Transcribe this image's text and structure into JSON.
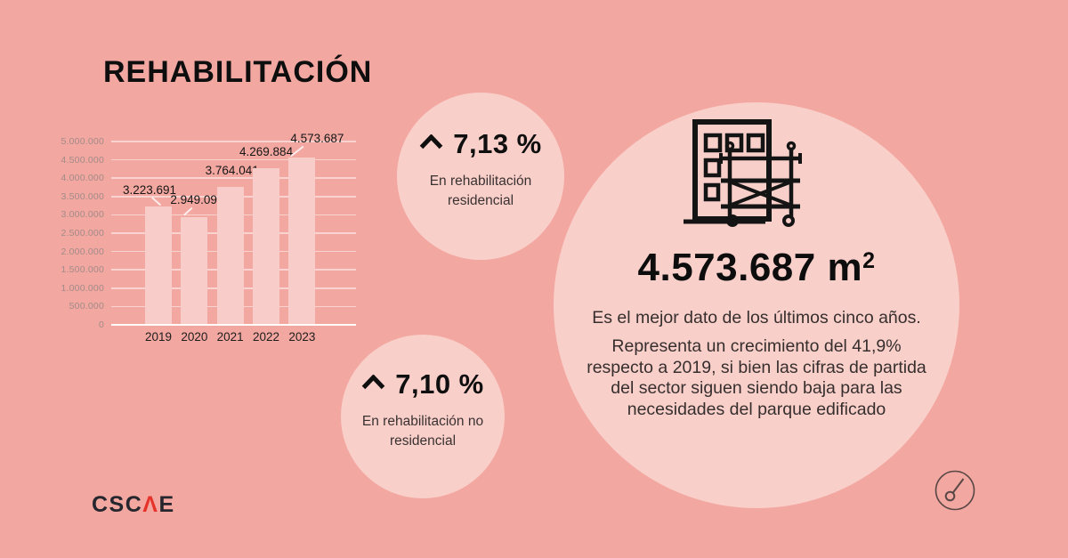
{
  "title": "REHABILITACIÓN",
  "chart_data": {
    "type": "bar",
    "categories": [
      "2019",
      "2020",
      "2021",
      "2022",
      "2023"
    ],
    "values": [
      3223691,
      2949090,
      3764041,
      4269884,
      4573687
    ],
    "value_labels": [
      "3.223.691",
      "2.949.090",
      "3.764.041",
      "4.269.884",
      "4.573.687"
    ],
    "ylim": [
      0,
      5000000
    ],
    "y_ticks": [
      0,
      500000,
      1000000,
      1500000,
      2000000,
      2500000,
      3000000,
      3500000,
      4000000,
      4500000,
      5000000
    ],
    "y_tick_labels": [
      "0",
      "500.000",
      "1.000.000",
      "1.500.000",
      "2.000.000",
      "2.500.000",
      "3.000.000",
      "3.500.000",
      "4.000.000",
      "4.500.000",
      "5.000.000"
    ],
    "xlabel": "",
    "ylabel": "",
    "grid": true,
    "legend": false,
    "bar_color": "#f8cdc9"
  },
  "stats": [
    {
      "icon": "chevron-up-icon",
      "value": "7,13 %",
      "label": "En rehabilitación residencial"
    },
    {
      "icon": "chevron-up-icon",
      "value": "7,10 %",
      "label": "En rehabilitación no residencial"
    }
  ],
  "highlight": {
    "icon": "building-scaffolding-icon",
    "value": "4.573.687 m",
    "exponent": "2",
    "line1": "Es el mejor dato de los últimos cinco años.",
    "line2": "Representa un crecimiento del 41,9% respecto a 2019, si bien las cifras de partida del sector siguen siendo baja para las necesidades del parque edificado"
  },
  "footer": {
    "logo_part1": "CSC",
    "logo_accent": "Λ",
    "logo_part2": "E"
  },
  "colors": {
    "background": "#f3a7a1",
    "circle_fill": "#f9cfca",
    "bar_fill": "#f8cdc9",
    "title_text": "#0e0e0e",
    "body_text": "#362f2e",
    "axis_tick_label": "#a18b88",
    "gridline": "#fbe5e2",
    "logo_dark": "#26262e",
    "logo_red": "#e6332a"
  }
}
